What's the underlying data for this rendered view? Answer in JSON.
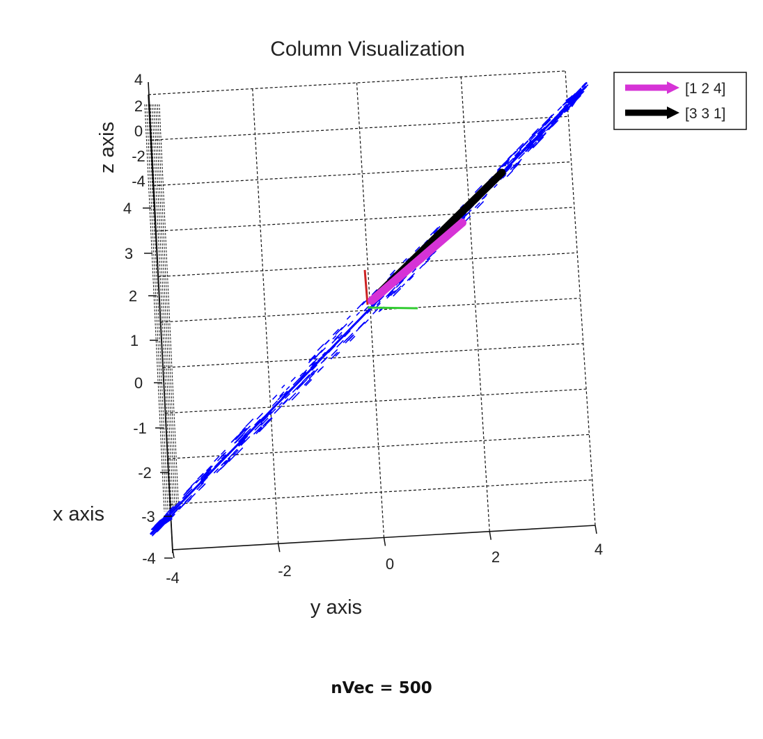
{
  "chart_data": {
    "type": "scatter",
    "title": "Column Visualization",
    "xlabel": "x axis",
    "ylabel": "y axis",
    "zlabel": "z axis",
    "xlim": [
      -4,
      4
    ],
    "ylim": [
      -4,
      4
    ],
    "zlim": [
      -4,
      4
    ],
    "grid": true,
    "legend_position": "top-right",
    "y_ticks": [
      "-4",
      "-2",
      "0",
      "2",
      "4"
    ],
    "x_ticks": [
      "-4",
      "-3",
      "-2",
      "-1",
      "0",
      "1",
      "2",
      "3",
      "4"
    ],
    "z_ticks": [
      "4",
      "2",
      "0",
      "-2",
      "-4"
    ],
    "sample_count": 500,
    "sample_color": "#0000ff",
    "series": [
      {
        "name": "[1 2 4]",
        "vector": [
          1,
          2,
          4
        ],
        "color": "#d633d6"
      },
      {
        "name": "[3 3 1]",
        "vector": [
          3,
          3,
          1
        ],
        "color": "#000000"
      }
    ],
    "origin_axes_colors": {
      "x": "#cc2222",
      "y": "#33cc33"
    }
  },
  "caption": "nVec = 500"
}
